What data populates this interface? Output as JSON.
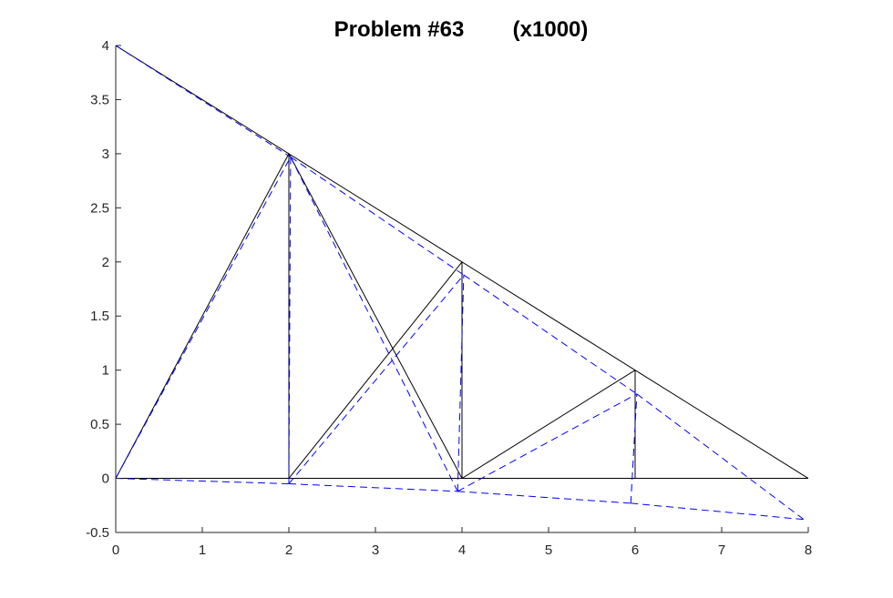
{
  "chart_data": {
    "type": "line",
    "title": "Problem #63        (x1000)",
    "xlabel": "",
    "ylabel": "",
    "xlim": [
      0,
      8
    ],
    "ylim": [
      -0.5,
      4
    ],
    "x_ticks": [
      "0",
      "1",
      "2",
      "3",
      "4",
      "5",
      "6",
      "7",
      "8"
    ],
    "y_ticks": [
      "-0.5",
      "0",
      "0.5",
      "1",
      "1.5",
      "2",
      "2.5",
      "3",
      "3.5",
      "4"
    ],
    "grid": false,
    "legend": "none",
    "series": [
      {
        "style": "solid",
        "color": "#000000",
        "segments": [
          [
            [
              0,
              0
            ],
            [
              2,
              0
            ]
          ],
          [
            [
              2,
              0
            ],
            [
              4,
              0
            ]
          ],
          [
            [
              4,
              0
            ],
            [
              6,
              0
            ]
          ],
          [
            [
              6,
              0
            ],
            [
              8,
              0
            ]
          ],
          [
            [
              0,
              4
            ],
            [
              2,
              3
            ]
          ],
          [
            [
              2,
              3
            ],
            [
              4,
              2
            ]
          ],
          [
            [
              4,
              2
            ],
            [
              6,
              1
            ]
          ],
          [
            [
              6,
              1
            ],
            [
              8,
              0
            ]
          ],
          [
            [
              0,
              0
            ],
            [
              2,
              3
            ]
          ],
          [
            [
              2,
              0
            ],
            [
              2,
              3
            ]
          ],
          [
            [
              2,
              3
            ],
            [
              4,
              0
            ]
          ],
          [
            [
              2,
              0
            ],
            [
              4,
              2
            ]
          ],
          [
            [
              4,
              0
            ],
            [
              4,
              2
            ]
          ],
          [
            [
              4,
              0
            ],
            [
              6,
              1
            ]
          ],
          [
            [
              6,
              0
            ],
            [
              6,
              1
            ]
          ]
        ]
      },
      {
        "style": "dashed",
        "color": "#0000ff",
        "segments": [
          [
            [
              0,
              0
            ],
            [
              2,
              -0.05
            ]
          ],
          [
            [
              2,
              -0.05
            ],
            [
              3.95,
              -0.12
            ]
          ],
          [
            [
              3.95,
              -0.12
            ],
            [
              5.95,
              -0.23
            ]
          ],
          [
            [
              5.95,
              -0.23
            ],
            [
              7.95,
              -0.38
            ]
          ],
          [
            [
              0,
              4
            ],
            [
              2.02,
              2.97
            ]
          ],
          [
            [
              2.02,
              2.97
            ],
            [
              4.02,
              1.88
            ]
          ],
          [
            [
              4.02,
              1.88
            ],
            [
              6.02,
              0.78
            ]
          ],
          [
            [
              6.02,
              0.78
            ],
            [
              7.95,
              -0.38
            ]
          ],
          [
            [
              0,
              0
            ],
            [
              2.02,
              2.97
            ]
          ],
          [
            [
              2,
              -0.05
            ],
            [
              2.02,
              2.97
            ]
          ],
          [
            [
              2.02,
              2.97
            ],
            [
              3.95,
              -0.12
            ]
          ],
          [
            [
              2,
              -0.05
            ],
            [
              4.02,
              1.88
            ]
          ],
          [
            [
              3.95,
              -0.12
            ],
            [
              4.02,
              1.88
            ]
          ],
          [
            [
              3.95,
              -0.12
            ],
            [
              6.02,
              0.78
            ]
          ],
          [
            [
              5.95,
              -0.23
            ],
            [
              6.02,
              0.78
            ]
          ]
        ]
      }
    ]
  }
}
